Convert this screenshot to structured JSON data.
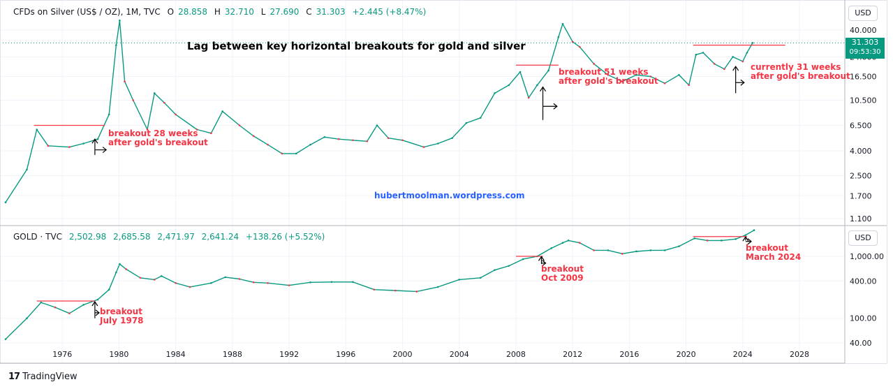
{
  "colors": {
    "up": "#089981",
    "down": "#f23645",
    "grid": "#f0f3fa",
    "axis": "#131722",
    "annotation": "#f23645",
    "website": "#2962ff",
    "resistance": "#f23645"
  },
  "silver_header": {
    "symbol": "CFDs on Silver (US$ / OZ), 1M, TVC",
    "o_label": "O",
    "o": "28.858",
    "h_label": "H",
    "h": "32.710",
    "l_label": "L",
    "l": "27.690",
    "c_label": "C",
    "c": "31.303",
    "change": "+2.445 (+8.47%)"
  },
  "gold_header": {
    "symbol": "GOLD · TVC",
    "o": "2,502.98",
    "h": "2,685.58",
    "l": "2,471.97",
    "c": "2,641.24",
    "change": "+138.26 (+5.52%)"
  },
  "currency_button": "USD",
  "last_price_tag": {
    "price": "31.303",
    "countdown": "09:53:30"
  },
  "title": "Lag between key horizontal breakouts for gold and silver",
  "website": "hubertmoolman.wordpress.com",
  "annotations": {
    "silver_1": [
      "breakout 28 weeks",
      "after gold's breakout"
    ],
    "silver_2": [
      "breakout 51 weeks",
      "after gold's breakout"
    ],
    "silver_3": [
      "currently 31 weeks",
      "after gold's breakout"
    ],
    "gold_1": [
      "breakout",
      "July 1978"
    ],
    "gold_2": [
      "breakout",
      "Oct 2009"
    ],
    "gold_3": [
      "breakout",
      "March 2024"
    ]
  },
  "footer": {
    "brand_mark": "17",
    "brand": "TradingView"
  },
  "chart_data": [
    {
      "id": "silver",
      "type": "line",
      "scale": "log",
      "ylabel": "USD",
      "y_ticks": [
        40.0,
        24.0,
        16.5,
        10.5,
        6.5,
        4.0,
        2.5,
        1.7,
        1.1
      ],
      "y_tick_labels": [
        "40.000",
        "24.000",
        "16.500",
        "10.500",
        "6.500",
        "4.000",
        "2.500",
        "1.700",
        "1.100"
      ],
      "x": [
        1972.0,
        1973.5,
        1974.2,
        1975.0,
        1976.5,
        1977.5,
        1978.5,
        1979.3,
        1979.8,
        1980.05,
        1980.4,
        1981.0,
        1982.0,
        1982.5,
        1983.2,
        1984.0,
        1985.5,
        1986.5,
        1987.3,
        1988.5,
        1989.5,
        1990.5,
        1991.5,
        1992.5,
        1993.5,
        1994.5,
        1995.5,
        1996.5,
        1997.5,
        1998.2,
        1999.0,
        2000.0,
        2001.5,
        2002.5,
        2003.5,
        2004.5,
        2005.5,
        2006.5,
        2007.5,
        2008.3,
        2008.9,
        2009.5,
        2010.3,
        2011.0,
        2011.3,
        2012.0,
        2012.5,
        2013.5,
        2014.5,
        2015.5,
        2016.5,
        2017.5,
        2018.5,
        2019.5,
        2020.2,
        2020.7,
        2021.2,
        2022.0,
        2022.7,
        2023.3,
        2024.0,
        2024.3,
        2024.7
      ],
      "values": [
        1.5,
        2.8,
        6.0,
        4.4,
        4.3,
        4.6,
        5.0,
        8.0,
        30.0,
        48.0,
        15.0,
        10.5,
        6.0,
        12.0,
        10.0,
        8.0,
        6.0,
        5.6,
        8.5,
        6.5,
        5.3,
        4.5,
        3.8,
        3.8,
        4.5,
        5.2,
        5.0,
        4.9,
        4.8,
        6.5,
        5.1,
        4.9,
        4.3,
        4.6,
        5.1,
        6.8,
        7.5,
        12.0,
        14.0,
        18.0,
        11.0,
        14.0,
        18.5,
        35.0,
        45.0,
        32.0,
        29.0,
        21.0,
        17.0,
        15.0,
        17.0,
        16.5,
        14.5,
        17.0,
        14.0,
        25.0,
        26.0,
        21.0,
        19.0,
        24.0,
        22.0,
        26.0,
        31.3
      ],
      "resistance_lines": [
        {
          "x_start": 1974.0,
          "x_end": 1979.0,
          "y": 6.5
        },
        {
          "x_start": 2008.0,
          "x_end": 2011.0,
          "y": 20.5
        },
        {
          "x_start": 2020.5,
          "x_end": 2027.0,
          "y": 30.0
        }
      ],
      "breakout_arrows": [
        {
          "x": 1978.3,
          "x_end": 1979.1,
          "y_low": 3.7,
          "y_high": 5.0
        },
        {
          "x": 2009.9,
          "x_end": 2010.9,
          "y_low": 7.2,
          "y_high": 13.5
        },
        {
          "x": 2023.5,
          "x_end": 2024.1,
          "y_low": 12.0,
          "y_high": 20.0
        }
      ],
      "last_price": 31.303
    },
    {
      "id": "gold",
      "type": "line",
      "scale": "log",
      "ylabel": "USD",
      "y_ticks": [
        1000,
        400,
        100,
        40
      ],
      "y_tick_labels": [
        "1,000.00",
        "400.00",
        "100.00",
        "40.00"
      ],
      "x": [
        1972.0,
        1973.5,
        1974.5,
        1975.5,
        1976.5,
        1977.5,
        1978.5,
        1979.3,
        1979.8,
        1980.05,
        1980.5,
        1981.5,
        1982.5,
        1983.0,
        1984.0,
        1985.0,
        1986.5,
        1987.5,
        1988.5,
        1989.5,
        1990.5,
        1992.0,
        1993.5,
        1995.0,
        1996.5,
        1998.0,
        1999.5,
        2001.0,
        2002.5,
        2004.0,
        2005.5,
        2006.5,
        2007.5,
        2008.5,
        2009.5,
        2010.5,
        2011.3,
        2011.7,
        2012.5,
        2013.5,
        2014.5,
        2015.5,
        2016.5,
        2017.5,
        2018.5,
        2019.5,
        2020.6,
        2021.5,
        2022.5,
        2023.5,
        2024.2,
        2024.8
      ],
      "values": [
        46,
        100,
        180,
        150,
        120,
        165,
        200,
        290,
        550,
        750,
        620,
        450,
        420,
        480,
        370,
        320,
        370,
        460,
        430,
        380,
        370,
        340,
        380,
        385,
        385,
        290,
        280,
        270,
        320,
        420,
        450,
        600,
        700,
        900,
        1000,
        1350,
        1650,
        1800,
        1650,
        1250,
        1250,
        1100,
        1200,
        1250,
        1250,
        1450,
        1950,
        1800,
        1800,
        1900,
        2200,
        2640
      ],
      "resistance_lines": [
        {
          "x_start": 1974.2,
          "x_end": 1978.3,
          "y": 190
        },
        {
          "x_start": 2008.0,
          "x_end": 2009.9,
          "y": 1000
        },
        {
          "x_start": 2020.5,
          "x_end": 2024.3,
          "y": 2080
        }
      ],
      "breakout_arrows": [
        {
          "x": 1978.3,
          "x_end": 1978.6,
          "y_low": 100,
          "y_high": 185
        },
        {
          "x": 2009.8,
          "x_end": 2010.1,
          "y_low": 750,
          "y_high": 990
        },
        {
          "x": 2024.2,
          "x_end": 2024.6,
          "y_low": 1800,
          "y_high": 2060
        }
      ],
      "last_price": 2641.24
    }
  ],
  "x_axis": {
    "ticks": [
      1976,
      1980,
      1984,
      1988,
      1992,
      1996,
      2000,
      2004,
      2008,
      2012,
      2016,
      2020,
      2024,
      2028
    ],
    "tick_labels": [
      "1976",
      "1980",
      "1984",
      "1988",
      "1992",
      "1996",
      "2000",
      "2004",
      "2008",
      "2012",
      "2016",
      "2020",
      "2024",
      "2028"
    ],
    "range": [
      1972.0,
      2031.2
    ]
  }
}
